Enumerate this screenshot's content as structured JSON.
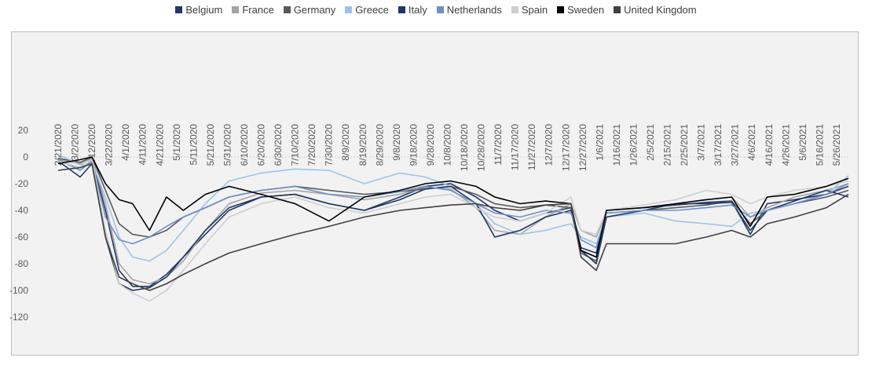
{
  "chart_data": {
    "type": "line",
    "title": "",
    "xlabel": "",
    "ylabel": "",
    "ylim": [
      -120,
      20
    ],
    "yticks": [
      20,
      0,
      -20,
      -40,
      -60,
      -80,
      -100,
      -120
    ],
    "xlim": [
      "2020-02-21",
      "2021-06-02"
    ],
    "x_tick_labels": [
      "2/21/2020",
      "3/2/2020",
      "3/12/2020",
      "3/22/2020",
      "4/1/2020",
      "4/11/2020",
      "4/21/2020",
      "5/1/2020",
      "5/11/2020",
      "5/21/2020",
      "5/31/2020",
      "6/10/2020",
      "6/20/2020",
      "6/30/2020",
      "7/10/2020",
      "7/20/2020",
      "7/30/2020",
      "8/9/2020",
      "8/19/2020",
      "8/29/2020",
      "9/8/2020",
      "9/18/2020",
      "9/28/2020",
      "10/8/2020",
      "10/18/2020",
      "10/28/2020",
      "11/7/2020",
      "11/17/2020",
      "11/27/2020",
      "12/7/2020",
      "12/17/2020",
      "12/27/2020",
      "1/6/2021",
      "1/16/2021",
      "1/26/2021",
      "2/5/2021",
      "2/15/2021",
      "2/25/2021",
      "3/7/2021",
      "3/17/2021",
      "3/27/2021",
      "4/6/2021",
      "4/16/2021",
      "4/26/2021",
      "5/6/2021",
      "5/16/2021",
      "5/26/2021"
    ],
    "legend_position": "top",
    "grid": {
      "horizontal_zero_line": true
    },
    "series": [
      {
        "name": "Belgium",
        "color": "#203864",
        "x": [
          "2020-02-21",
          "2020-03-05",
          "2020-03-12",
          "2020-03-20",
          "2020-03-28",
          "2020-04-05",
          "2020-04-15",
          "2020-04-25",
          "2020-05-05",
          "2020-05-18",
          "2020-06-01",
          "2020-06-20",
          "2020-07-10",
          "2020-07-30",
          "2020-08-20",
          "2020-09-10",
          "2020-09-25",
          "2020-10-10",
          "2020-10-25",
          "2020-11-05",
          "2020-11-20",
          "2020-12-05",
          "2020-12-20",
          "2020-12-26",
          "2021-01-04",
          "2021-01-10",
          "2021-02-01",
          "2021-02-20",
          "2021-03-10",
          "2021-03-25",
          "2021-04-05",
          "2021-04-15",
          "2021-05-01",
          "2021-05-20",
          "2021-06-02"
        ],
        "values": [
          -3,
          -8,
          -2,
          -40,
          -85,
          -97,
          -97,
          -88,
          -75,
          -58,
          -40,
          -30,
          -28,
          -35,
          -40,
          -30,
          -22,
          -20,
          -30,
          -40,
          -48,
          -42,
          -38,
          -68,
          -72,
          -40,
          -38,
          -36,
          -34,
          -33,
          -58,
          -35,
          -32,
          -28,
          -22
        ]
      },
      {
        "name": "France",
        "color": "#a5a5a5",
        "x": [
          "2020-02-21",
          "2020-03-05",
          "2020-03-12",
          "2020-03-20",
          "2020-03-28",
          "2020-04-05",
          "2020-04-15",
          "2020-04-25",
          "2020-05-05",
          "2020-05-18",
          "2020-06-01",
          "2020-06-20",
          "2020-07-10",
          "2020-07-30",
          "2020-08-20",
          "2020-09-10",
          "2020-09-25",
          "2020-10-10",
          "2020-10-25",
          "2020-11-05",
          "2020-11-20",
          "2020-12-05",
          "2020-12-20",
          "2020-12-26",
          "2021-01-04",
          "2021-01-10",
          "2021-02-01",
          "2021-02-20",
          "2021-03-10",
          "2021-03-25",
          "2021-04-05",
          "2021-04-15",
          "2021-05-01",
          "2021-05-20",
          "2021-06-02"
        ],
        "values": [
          -2,
          -5,
          -1,
          -35,
          -80,
          -92,
          -95,
          -90,
          -78,
          -55,
          -35,
          -27,
          -25,
          -28,
          -32,
          -28,
          -23,
          -24,
          -38,
          -55,
          -58,
          -45,
          -35,
          -55,
          -60,
          -42,
          -40,
          -35,
          -32,
          -30,
          -45,
          -38,
          -30,
          -25,
          -20
        ]
      },
      {
        "name": "Germany",
        "color": "#595959",
        "x": [
          "2020-02-21",
          "2020-03-05",
          "2020-03-12",
          "2020-03-20",
          "2020-03-28",
          "2020-04-05",
          "2020-04-15",
          "2020-04-25",
          "2020-05-05",
          "2020-05-18",
          "2020-06-01",
          "2020-06-20",
          "2020-07-10",
          "2020-07-30",
          "2020-08-20",
          "2020-09-10",
          "2020-09-25",
          "2020-10-10",
          "2020-10-25",
          "2020-11-05",
          "2020-11-20",
          "2020-12-05",
          "2020-12-20",
          "2020-12-26",
          "2021-01-04",
          "2021-01-10",
          "2021-02-01",
          "2021-02-20",
          "2021-03-10",
          "2021-03-25",
          "2021-04-05",
          "2021-04-15",
          "2021-05-01",
          "2021-05-20",
          "2021-06-02"
        ],
        "values": [
          -1,
          -4,
          0,
          -25,
          -50,
          -58,
          -60,
          -55,
          -45,
          -38,
          -30,
          -25,
          -22,
          -25,
          -28,
          -26,
          -24,
          -22,
          -28,
          -35,
          -38,
          -36,
          -38,
          -72,
          -78,
          -45,
          -40,
          -38,
          -36,
          -33,
          -50,
          -40,
          -35,
          -30,
          -25
        ]
      },
      {
        "name": "Greece",
        "color": "#9dc3e6",
        "x": [
          "2020-02-21",
          "2020-03-05",
          "2020-03-12",
          "2020-03-20",
          "2020-03-28",
          "2020-04-05",
          "2020-04-15",
          "2020-04-25",
          "2020-05-05",
          "2020-05-18",
          "2020-06-01",
          "2020-06-20",
          "2020-07-10",
          "2020-07-30",
          "2020-08-20",
          "2020-09-10",
          "2020-09-25",
          "2020-10-10",
          "2020-10-25",
          "2020-11-05",
          "2020-11-20",
          "2020-12-05",
          "2020-12-20",
          "2020-12-26",
          "2021-01-04",
          "2021-01-10",
          "2021-02-01",
          "2021-02-20",
          "2021-03-10",
          "2021-03-25",
          "2021-04-05",
          "2021-04-15",
          "2021-05-01",
          "2021-05-20",
          "2021-06-02"
        ],
        "values": [
          2,
          -6,
          -4,
          -30,
          -60,
          -75,
          -78,
          -70,
          -55,
          -35,
          -18,
          -12,
          -9,
          -10,
          -20,
          -12,
          -15,
          -22,
          -35,
          -50,
          -58,
          -55,
          -50,
          -60,
          -65,
          -45,
          -42,
          -48,
          -50,
          -52,
          -42,
          -40,
          -35,
          -28,
          -14
        ]
      },
      {
        "name": "Italy",
        "color": "#1f3864",
        "x": [
          "2020-02-21",
          "2020-03-05",
          "2020-03-12",
          "2020-03-20",
          "2020-03-28",
          "2020-04-05",
          "2020-04-15",
          "2020-04-25",
          "2020-05-05",
          "2020-05-18",
          "2020-06-01",
          "2020-06-20",
          "2020-07-10",
          "2020-07-30",
          "2020-08-20",
          "2020-09-10",
          "2020-09-25",
          "2020-10-10",
          "2020-10-25",
          "2020-11-05",
          "2020-11-20",
          "2020-12-05",
          "2020-12-20",
          "2020-12-26",
          "2021-01-04",
          "2021-01-10",
          "2021-02-01",
          "2021-02-20",
          "2021-03-10",
          "2021-03-25",
          "2021-04-05",
          "2021-04-15",
          "2021-05-01",
          "2021-05-20",
          "2021-06-02"
        ],
        "values": [
          -3,
          -15,
          -5,
          -60,
          -95,
          -100,
          -98,
          -90,
          -75,
          -55,
          -38,
          -30,
          -28,
          -35,
          -40,
          -32,
          -24,
          -22,
          -35,
          -60,
          -55,
          -45,
          -40,
          -70,
          -80,
          -45,
          -40,
          -35,
          -35,
          -34,
          -55,
          -40,
          -33,
          -25,
          -30
        ]
      },
      {
        "name": "Netherlands",
        "color": "#6f8fc9",
        "x": [
          "2020-02-21",
          "2020-03-05",
          "2020-03-12",
          "2020-03-20",
          "2020-03-28",
          "2020-04-05",
          "2020-04-15",
          "2020-04-25",
          "2020-05-05",
          "2020-05-18",
          "2020-06-01",
          "2020-06-20",
          "2020-07-10",
          "2020-07-30",
          "2020-08-20",
          "2020-09-10",
          "2020-09-25",
          "2020-10-10",
          "2020-10-25",
          "2020-11-05",
          "2020-11-20",
          "2020-12-05",
          "2020-12-20",
          "2020-12-26",
          "2021-01-04",
          "2021-01-10",
          "2021-02-01",
          "2021-02-20",
          "2021-03-10",
          "2021-03-25",
          "2021-04-05",
          "2021-04-15",
          "2021-05-01",
          "2021-05-20",
          "2021-06-02"
        ],
        "values": [
          -2,
          -10,
          -3,
          -45,
          -62,
          -65,
          -60,
          -52,
          -45,
          -38,
          -30,
          -25,
          -22,
          -28,
          -30,
          -26,
          -22,
          -25,
          -35,
          -42,
          -45,
          -40,
          -42,
          -62,
          -68,
          -42,
          -40,
          -40,
          -38,
          -36,
          -45,
          -40,
          -35,
          -28,
          -20
        ]
      },
      {
        "name": "Spain",
        "color": "#d0cece",
        "x": [
          "2020-02-21",
          "2020-03-05",
          "2020-03-12",
          "2020-03-20",
          "2020-03-28",
          "2020-04-05",
          "2020-04-15",
          "2020-04-25",
          "2020-05-05",
          "2020-05-18",
          "2020-06-01",
          "2020-06-20",
          "2020-07-10",
          "2020-07-30",
          "2020-08-20",
          "2020-09-10",
          "2020-09-25",
          "2020-10-10",
          "2020-10-25",
          "2020-11-05",
          "2020-11-20",
          "2020-12-05",
          "2020-12-20",
          "2020-12-26",
          "2021-01-04",
          "2021-01-10",
          "2021-02-01",
          "2021-02-20",
          "2021-03-10",
          "2021-03-25",
          "2021-04-05",
          "2021-04-15",
          "2021-05-01",
          "2021-05-20",
          "2021-06-02"
        ],
        "values": [
          -3,
          -8,
          -2,
          -55,
          -95,
          -102,
          -108,
          -100,
          -85,
          -65,
          -45,
          -35,
          -30,
          -38,
          -42,
          -35,
          -30,
          -28,
          -38,
          -45,
          -48,
          -42,
          -30,
          -55,
          -58,
          -40,
          -36,
          -32,
          -25,
          -28,
          -35,
          -30,
          -25,
          -22,
          -18
        ]
      },
      {
        "name": "Sweden",
        "color": "#000000",
        "x": [
          "2020-02-21",
          "2020-03-05",
          "2020-03-12",
          "2020-03-20",
          "2020-03-28",
          "2020-04-05",
          "2020-04-15",
          "2020-04-25",
          "2020-05-05",
          "2020-05-18",
          "2020-06-01",
          "2020-06-20",
          "2020-07-10",
          "2020-07-30",
          "2020-08-20",
          "2020-09-10",
          "2020-09-25",
          "2020-10-10",
          "2020-10-25",
          "2020-11-05",
          "2020-11-20",
          "2020-12-05",
          "2020-12-20",
          "2020-12-26",
          "2021-01-04",
          "2021-01-10",
          "2021-02-01",
          "2021-02-20",
          "2021-03-10",
          "2021-03-25",
          "2021-04-05",
          "2021-04-15",
          "2021-05-01",
          "2021-05-20",
          "2021-06-02"
        ],
        "values": [
          -5,
          -2,
          0,
          -20,
          -32,
          -35,
          -55,
          -30,
          -40,
          -28,
          -22,
          -28,
          -35,
          -48,
          -30,
          -25,
          -20,
          -18,
          -22,
          -30,
          -35,
          -33,
          -35,
          -70,
          -75,
          -40,
          -38,
          -35,
          -32,
          -30,
          -52,
          -30,
          -28,
          -22,
          -16
        ]
      },
      {
        "name": "United Kingdom",
        "color": "#404040",
        "x": [
          "2020-02-21",
          "2020-03-05",
          "2020-03-12",
          "2020-03-20",
          "2020-03-28",
          "2020-04-05",
          "2020-04-15",
          "2020-04-25",
          "2020-05-05",
          "2020-05-18",
          "2020-06-01",
          "2020-06-20",
          "2020-07-10",
          "2020-07-30",
          "2020-08-20",
          "2020-09-10",
          "2020-09-25",
          "2020-10-10",
          "2020-10-25",
          "2020-11-05",
          "2020-11-20",
          "2020-12-05",
          "2020-12-20",
          "2020-12-26",
          "2021-01-04",
          "2021-01-10",
          "2021-02-01",
          "2021-02-20",
          "2021-03-10",
          "2021-03-25",
          "2021-04-05",
          "2021-04-15",
          "2021-05-01",
          "2021-05-20",
          "2021-06-02"
        ],
        "values": [
          -10,
          -8,
          -5,
          -60,
          -90,
          -95,
          -100,
          -95,
          -88,
          -80,
          -72,
          -65,
          -58,
          -52,
          -45,
          -40,
          -38,
          -36,
          -35,
          -38,
          -40,
          -36,
          -35,
          -75,
          -85,
          -65,
          -65,
          -65,
          -60,
          -55,
          -60,
          -50,
          -45,
          -38,
          -28
        ]
      }
    ]
  }
}
